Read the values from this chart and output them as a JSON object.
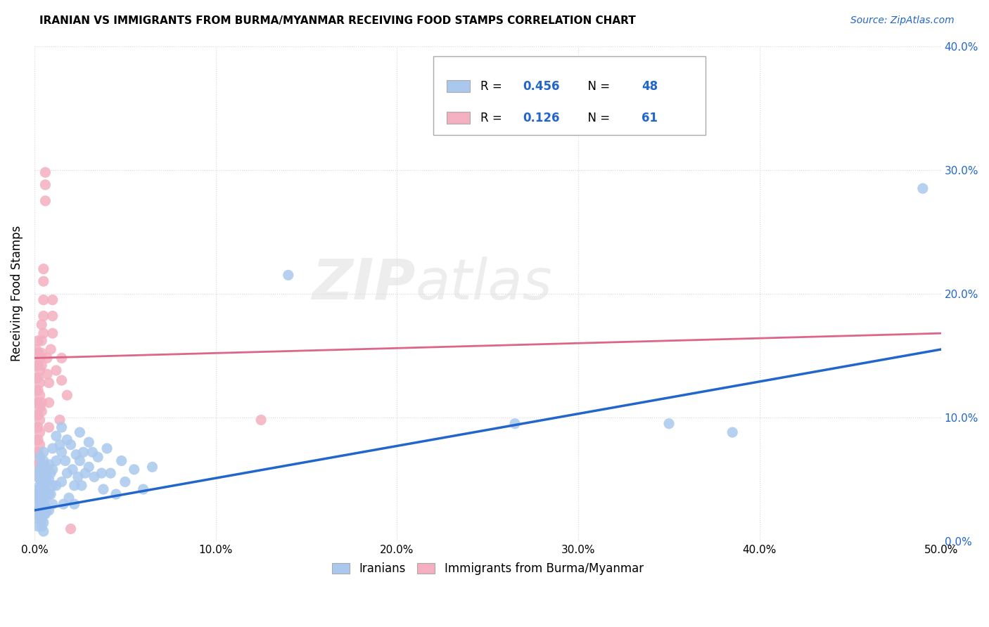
{
  "title": "IRANIAN VS IMMIGRANTS FROM BURMA/MYANMAR RECEIVING FOOD STAMPS CORRELATION CHART",
  "source": "Source: ZipAtlas.com",
  "ylabel": "Receiving Food Stamps",
  "legend_labels": [
    "Iranians",
    "Immigrants from Burma/Myanmar"
  ],
  "blue_color": "#aac8ee",
  "pink_color": "#f4afc0",
  "blue_line_color": "#2266cc",
  "pink_line_color": "#dd6688",
  "xlim": [
    0.0,
    0.5
  ],
  "ylim": [
    0.0,
    0.4
  ],
  "blue_scatter": [
    [
      0.001,
      0.038
    ],
    [
      0.001,
      0.028
    ],
    [
      0.001,
      0.022
    ],
    [
      0.002,
      0.055
    ],
    [
      0.002,
      0.042
    ],
    [
      0.002,
      0.035
    ],
    [
      0.002,
      0.025
    ],
    [
      0.002,
      0.018
    ],
    [
      0.002,
      0.012
    ],
    [
      0.003,
      0.068
    ],
    [
      0.003,
      0.058
    ],
    [
      0.003,
      0.05
    ],
    [
      0.003,
      0.045
    ],
    [
      0.003,
      0.038
    ],
    [
      0.003,
      0.032
    ],
    [
      0.003,
      0.025
    ],
    [
      0.003,
      0.02
    ],
    [
      0.004,
      0.062
    ],
    [
      0.004,
      0.055
    ],
    [
      0.004,
      0.048
    ],
    [
      0.004,
      0.042
    ],
    [
      0.004,
      0.038
    ],
    [
      0.004,
      0.032
    ],
    [
      0.004,
      0.025
    ],
    [
      0.004,
      0.018
    ],
    [
      0.004,
      0.012
    ],
    [
      0.005,
      0.072
    ],
    [
      0.005,
      0.065
    ],
    [
      0.005,
      0.055
    ],
    [
      0.005,
      0.048
    ],
    [
      0.005,
      0.042
    ],
    [
      0.005,
      0.035
    ],
    [
      0.005,
      0.028
    ],
    [
      0.005,
      0.022
    ],
    [
      0.005,
      0.015
    ],
    [
      0.005,
      0.008
    ],
    [
      0.006,
      0.06
    ],
    [
      0.006,
      0.05
    ],
    [
      0.006,
      0.042
    ],
    [
      0.006,
      0.035
    ],
    [
      0.006,
      0.028
    ],
    [
      0.006,
      0.022
    ],
    [
      0.007,
      0.058
    ],
    [
      0.007,
      0.048
    ],
    [
      0.007,
      0.038
    ],
    [
      0.007,
      0.025
    ],
    [
      0.008,
      0.062
    ],
    [
      0.008,
      0.05
    ],
    [
      0.008,
      0.038
    ],
    [
      0.008,
      0.025
    ],
    [
      0.009,
      0.055
    ],
    [
      0.009,
      0.038
    ],
    [
      0.01,
      0.075
    ],
    [
      0.01,
      0.058
    ],
    [
      0.01,
      0.045
    ],
    [
      0.01,
      0.03
    ],
    [
      0.012,
      0.085
    ],
    [
      0.012,
      0.065
    ],
    [
      0.012,
      0.045
    ],
    [
      0.014,
      0.078
    ],
    [
      0.015,
      0.092
    ],
    [
      0.015,
      0.072
    ],
    [
      0.015,
      0.048
    ],
    [
      0.016,
      0.03
    ],
    [
      0.017,
      0.065
    ],
    [
      0.018,
      0.082
    ],
    [
      0.018,
      0.055
    ],
    [
      0.019,
      0.035
    ],
    [
      0.02,
      0.078
    ],
    [
      0.021,
      0.058
    ],
    [
      0.022,
      0.045
    ],
    [
      0.022,
      0.03
    ],
    [
      0.023,
      0.07
    ],
    [
      0.024,
      0.052
    ],
    [
      0.025,
      0.088
    ],
    [
      0.025,
      0.065
    ],
    [
      0.026,
      0.045
    ],
    [
      0.027,
      0.072
    ],
    [
      0.028,
      0.055
    ],
    [
      0.03,
      0.08
    ],
    [
      0.03,
      0.06
    ],
    [
      0.032,
      0.072
    ],
    [
      0.033,
      0.052
    ],
    [
      0.035,
      0.068
    ],
    [
      0.037,
      0.055
    ],
    [
      0.038,
      0.042
    ],
    [
      0.04,
      0.075
    ],
    [
      0.042,
      0.055
    ],
    [
      0.045,
      0.038
    ],
    [
      0.048,
      0.065
    ],
    [
      0.05,
      0.048
    ],
    [
      0.055,
      0.058
    ],
    [
      0.06,
      0.042
    ],
    [
      0.065,
      0.06
    ],
    [
      0.14,
      0.215
    ],
    [
      0.265,
      0.095
    ],
    [
      0.35,
      0.095
    ],
    [
      0.385,
      0.088
    ],
    [
      0.49,
      0.285
    ]
  ],
  "pink_scatter": [
    [
      0.001,
      0.155
    ],
    [
      0.001,
      0.142
    ],
    [
      0.001,
      0.132
    ],
    [
      0.001,
      0.122
    ],
    [
      0.001,
      0.112
    ],
    [
      0.001,
      0.102
    ],
    [
      0.001,
      0.092
    ],
    [
      0.001,
      0.082
    ],
    [
      0.001,
      0.072
    ],
    [
      0.001,
      0.062
    ],
    [
      0.002,
      0.162
    ],
    [
      0.002,
      0.152
    ],
    [
      0.002,
      0.142
    ],
    [
      0.002,
      0.132
    ],
    [
      0.002,
      0.122
    ],
    [
      0.002,
      0.112
    ],
    [
      0.002,
      0.102
    ],
    [
      0.002,
      0.092
    ],
    [
      0.002,
      0.082
    ],
    [
      0.002,
      0.072
    ],
    [
      0.002,
      0.062
    ],
    [
      0.002,
      0.052
    ],
    [
      0.003,
      0.148
    ],
    [
      0.003,
      0.138
    ],
    [
      0.003,
      0.128
    ],
    [
      0.003,
      0.118
    ],
    [
      0.003,
      0.108
    ],
    [
      0.003,
      0.098
    ],
    [
      0.003,
      0.088
    ],
    [
      0.003,
      0.078
    ],
    [
      0.003,
      0.068
    ],
    [
      0.004,
      0.175
    ],
    [
      0.004,
      0.162
    ],
    [
      0.004,
      0.152
    ],
    [
      0.004,
      0.142
    ],
    [
      0.004,
      0.112
    ],
    [
      0.004,
      0.105
    ],
    [
      0.005,
      0.22
    ],
    [
      0.005,
      0.21
    ],
    [
      0.005,
      0.195
    ],
    [
      0.005,
      0.182
    ],
    [
      0.005,
      0.168
    ],
    [
      0.006,
      0.298
    ],
    [
      0.006,
      0.288
    ],
    [
      0.006,
      0.275
    ],
    [
      0.007,
      0.148
    ],
    [
      0.007,
      0.135
    ],
    [
      0.008,
      0.128
    ],
    [
      0.008,
      0.112
    ],
    [
      0.008,
      0.092
    ],
    [
      0.009,
      0.155
    ],
    [
      0.01,
      0.195
    ],
    [
      0.01,
      0.182
    ],
    [
      0.01,
      0.168
    ],
    [
      0.012,
      0.138
    ],
    [
      0.014,
      0.098
    ],
    [
      0.015,
      0.148
    ],
    [
      0.015,
      0.13
    ],
    [
      0.018,
      0.118
    ],
    [
      0.02,
      0.01
    ],
    [
      0.125,
      0.098
    ]
  ],
  "blue_line": {
    "x0": 0.0,
    "y0": 0.025,
    "x1": 0.5,
    "y1": 0.155
  },
  "pink_line": {
    "x0": 0.0,
    "y0": 0.148,
    "x1": 0.5,
    "y1": 0.168
  }
}
